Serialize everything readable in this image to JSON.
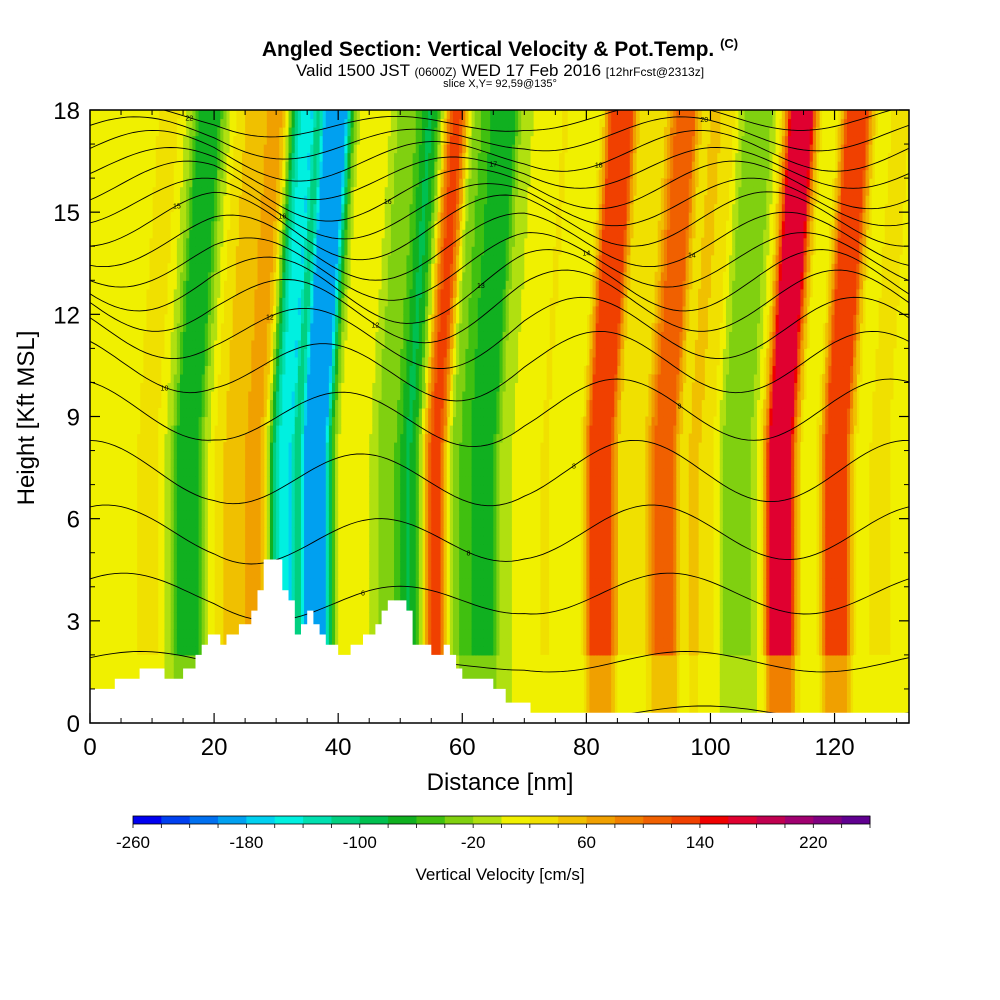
{
  "title": {
    "main": "Angled Section: Vertical Velocity & Pot.Temp.",
    "corner_tag": "(C)",
    "valid_prefix": "Valid 1500 JST",
    "valid_zulu": "(0600Z)",
    "valid_date": "WED 17 Feb 2016",
    "fcst": "[12hrFcst@2313z]",
    "slice": "slice X,Y= 92,59@135°"
  },
  "chart_data": {
    "type": "heatmap",
    "xlabel": "Distance [nm]",
    "ylabel": "Height [Kft MSL]",
    "xlim": [
      0,
      132
    ],
    "ylim": [
      0,
      18
    ],
    "x_ticks": [
      0,
      20,
      40,
      60,
      80,
      100,
      120
    ],
    "y_ticks": [
      0,
      3,
      6,
      9,
      12,
      15,
      18
    ],
    "colorbar": {
      "label": "Vertical Velocity [cm/s]",
      "tick_labels": [
        "-260",
        "-180",
        "-100",
        "-20",
        "60",
        "140",
        "220"
      ],
      "levels": [
        -260,
        -240,
        -220,
        -200,
        -180,
        -160,
        -140,
        -120,
        -100,
        -80,
        -60,
        -40,
        -20,
        0,
        20,
        40,
        60,
        80,
        100,
        120,
        140,
        160,
        180,
        200,
        220,
        240
      ],
      "colors": [
        "#0000f0",
        "#0040f0",
        "#0070f0",
        "#00a0f0",
        "#00d0f0",
        "#00f0e0",
        "#00e0b0",
        "#00d080",
        "#00c050",
        "#10b020",
        "#40c010",
        "#80d010",
        "#b0e010",
        "#f0f000",
        "#f0e000",
        "#f0c000",
        "#f0a000",
        "#f08000",
        "#f06000",
        "#f04000",
        "#f00000",
        "#e00030",
        "#c00050",
        "#a00070",
        "#800080",
        "#600090"
      ]
    },
    "vertical_velocity_bands": [
      {
        "x": 2,
        "w": 0.0
      },
      {
        "x": 9,
        "w": 22
      },
      {
        "x": 15.5,
        "w": -70
      },
      {
        "x": 22,
        "w": 40
      },
      {
        "x": 27,
        "w": 80
      },
      {
        "x": 30.5,
        "w": -160
      },
      {
        "x": 36,
        "w": -200
      },
      {
        "x": 42,
        "w": 20
      },
      {
        "x": 48,
        "w": -30
      },
      {
        "x": 52,
        "w": -100
      },
      {
        "x": 55,
        "w": 160
      },
      {
        "x": 59,
        "w": -40
      },
      {
        "x": 63,
        "w": -80
      },
      {
        "x": 72,
        "w": 20
      },
      {
        "x": 82,
        "w": 140
      },
      {
        "x": 88,
        "w": 20
      },
      {
        "x": 92,
        "w": 120
      },
      {
        "x": 98,
        "w": 40
      },
      {
        "x": 104,
        "w": -40
      },
      {
        "x": 111,
        "w": 180
      },
      {
        "x": 120,
        "w": 130
      },
      {
        "x": 127,
        "w": 20
      }
    ],
    "terrain": [
      [
        0,
        1.0
      ],
      [
        4,
        1.0
      ],
      [
        4,
        1.3
      ],
      [
        8,
        1.3
      ],
      [
        8,
        1.6
      ],
      [
        12,
        1.6
      ],
      [
        12,
        1.3
      ],
      [
        15,
        1.3
      ],
      [
        15,
        1.6
      ],
      [
        17,
        1.6
      ],
      [
        17,
        2.0
      ],
      [
        18,
        2.0
      ],
      [
        18,
        2.3
      ],
      [
        19,
        2.3
      ],
      [
        19,
        2.6
      ],
      [
        21,
        2.6
      ],
      [
        21,
        2.3
      ],
      [
        22,
        2.3
      ],
      [
        22,
        2.6
      ],
      [
        24,
        2.6
      ],
      [
        24,
        2.9
      ],
      [
        26,
        2.9
      ],
      [
        26,
        3.3
      ],
      [
        27,
        3.3
      ],
      [
        27,
        3.9
      ],
      [
        28,
        3.9
      ],
      [
        28,
        4.8
      ],
      [
        31,
        4.8
      ],
      [
        31,
        3.9
      ],
      [
        32,
        3.9
      ],
      [
        32,
        3.6
      ],
      [
        33,
        3.6
      ],
      [
        33,
        2.6
      ],
      [
        34,
        2.6
      ],
      [
        34,
        2.9
      ],
      [
        35,
        2.9
      ],
      [
        35,
        3.3
      ],
      [
        36,
        3.3
      ],
      [
        36,
        2.9
      ],
      [
        37,
        2.9
      ],
      [
        37,
        2.6
      ],
      [
        38,
        2.6
      ],
      [
        38,
        2.3
      ],
      [
        40,
        2.3
      ],
      [
        40,
        2.0
      ],
      [
        42,
        2.0
      ],
      [
        42,
        2.3
      ],
      [
        44,
        2.3
      ],
      [
        44,
        2.6
      ],
      [
        46,
        2.6
      ],
      [
        46,
        2.9
      ],
      [
        47,
        2.9
      ],
      [
        47,
        3.3
      ],
      [
        48,
        3.3
      ],
      [
        48,
        3.6
      ],
      [
        51,
        3.6
      ],
      [
        51,
        3.3
      ],
      [
        52,
        3.3
      ],
      [
        52,
        2.3
      ],
      [
        55,
        2.3
      ],
      [
        55,
        2.0
      ],
      [
        57,
        2.0
      ],
      [
        57,
        2.3
      ],
      [
        58,
        2.3
      ],
      [
        58,
        2.0
      ],
      [
        59,
        2.0
      ],
      [
        59,
        1.6
      ],
      [
        60,
        1.6
      ],
      [
        60,
        1.3
      ],
      [
        65,
        1.3
      ],
      [
        65,
        1.0
      ],
      [
        67,
        1.0
      ],
      [
        67,
        0.6
      ],
      [
        71,
        0.6
      ],
      [
        71,
        0.3
      ],
      [
        132,
        0.3
      ]
    ],
    "theta_contours": [
      {
        "y0": 0.3,
        "amp": 0.2,
        "label": ""
      },
      {
        "y0": 1.8,
        "amp": 0.3,
        "label": ""
      },
      {
        "y0": 3.8,
        "amp": 0.6,
        "label": "6"
      },
      {
        "y0": 5.6,
        "amp": 0.8,
        "label": "8"
      },
      {
        "y0": 7.4,
        "amp": 0.9,
        "label": "8"
      },
      {
        "y0": 9.2,
        "amp": 0.9,
        "label": "9"
      },
      {
        "y0": 10.6,
        "amp": 0.9,
        "label": "10"
      },
      {
        "y0": 11.6,
        "amp": 0.9,
        "label": "12"
      },
      {
        "y0": 12.4,
        "amp": 0.9,
        "label": "12"
      },
      {
        "y0": 13.0,
        "amp": 0.9,
        "label": "13"
      },
      {
        "y0": 13.6,
        "amp": 0.8,
        "label": "14"
      },
      {
        "y0": 14.2,
        "amp": 0.8,
        "label": "14"
      },
      {
        "y0": 14.8,
        "amp": 0.8,
        "label": "15"
      },
      {
        "y0": 15.3,
        "amp": 0.7,
        "label": "16"
      },
      {
        "y0": 15.8,
        "amp": 0.7,
        "label": "16"
      },
      {
        "y0": 16.3,
        "amp": 0.6,
        "label": "17"
      },
      {
        "y0": 16.8,
        "amp": 0.6,
        "label": "18"
      },
      {
        "y0": 17.3,
        "amp": 0.5,
        "label": "20"
      },
      {
        "y0": 17.8,
        "amp": 0.4,
        "label": "22"
      }
    ]
  }
}
